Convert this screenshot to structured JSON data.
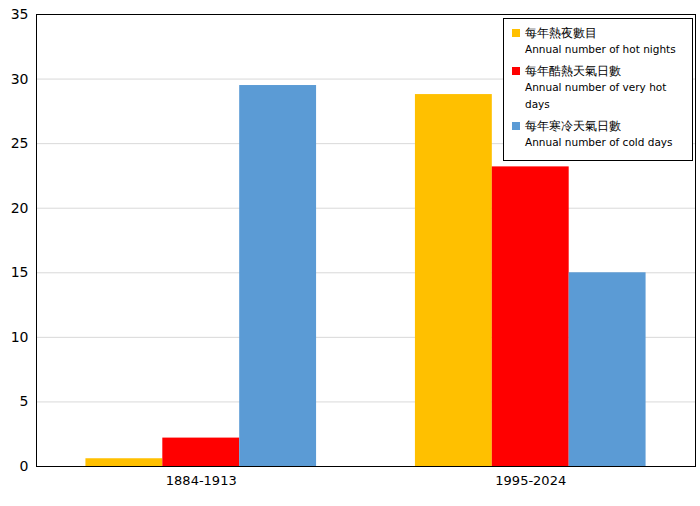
{
  "chart_data": {
    "type": "bar",
    "categories": [
      "1884-1913",
      "1995-2024"
    ],
    "series": [
      {
        "name": "每年熱夜數目\nAnnual number of hot nights",
        "color": "#FFC000",
        "values": [
          0.6,
          28.8
        ]
      },
      {
        "name": "每年酷熱天氣日數\nAnnual number of very hot days",
        "color": "#FF0000",
        "values": [
          2.2,
          23.2
        ]
      },
      {
        "name": "每年寒冷天氣日數\nAnnual number of cold days",
        "color": "#5B9BD5",
        "values": [
          29.5,
          15.0
        ]
      }
    ],
    "ylim": [
      0,
      35
    ],
    "yticks": [
      0,
      5,
      10,
      15,
      20,
      25,
      30,
      35
    ],
    "grid": true,
    "legend": "top-right"
  }
}
